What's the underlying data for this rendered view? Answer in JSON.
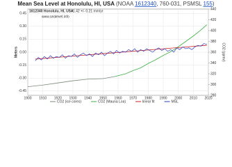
{
  "chart_data": {
    "type": "line",
    "title": "Mean Sea Level at Honolulu, HI, USA",
    "source_parts": [
      "(NOAA ",
      "1612340",
      ", 760-031, PSMSL ",
      "155",
      ")"
    ],
    "station": "1612340 Honolulu, HI, USA",
    "trend": "+1.42 +/- 0.21 mm/yr",
    "watermark": "www.sealevel.info",
    "ylabel": "Meters",
    "y2label": "CO2 (ppmv)",
    "xlim": [
      1900,
      2020
    ],
    "xticks": [
      1900,
      1910,
      1920,
      1930,
      1940,
      1950,
      1960,
      1970,
      1980,
      1990,
      2000,
      2010,
      2020
    ],
    "ylim": [
      -0.5,
      0.5
    ],
    "yticks": [
      {
        "value": -0.45,
        "label": "-0.45"
      },
      {
        "value": -0.3,
        "label": "-0.30"
      },
      {
        "value": -0.15,
        "label": "-0.15"
      },
      {
        "value": 0,
        "label": "0.00"
      },
      {
        "value": 0.15,
        "label": "0.15"
      },
      {
        "value": 0.3,
        "label": "0.30"
      },
      {
        "value": 0.45,
        "label": "0.45"
      }
    ],
    "y2lim": [
      280,
      440
    ],
    "y2ticks": [
      280,
      300,
      320,
      340,
      360,
      380,
      400,
      420,
      440
    ],
    "grid": true,
    "series": [
      {
        "name": "CO2 (ice cores)",
        "color": "#7a8a7a",
        "axis": "y2",
        "x": [
          1900,
          1910,
          1920,
          1930,
          1940,
          1950,
          1958
        ],
        "values": [
          296,
          299,
          303,
          307,
          310,
          311,
          315
        ]
      },
      {
        "name": "CO2 (Mauna Loa)",
        "color": "#3cb043",
        "axis": "y2",
        "x": [
          1958,
          1965,
          1970,
          1975,
          1980,
          1985,
          1990,
          1995,
          2000,
          2005,
          2010,
          2015,
          2019
        ],
        "values": [
          315,
          320,
          326,
          331,
          339,
          346,
          354,
          361,
          370,
          380,
          390,
          401,
          411
        ]
      },
      {
        "name": "linear fit",
        "color": "#d02020",
        "x": [
          1905,
          2019
        ],
        "values": [
          -0.08,
          0.08
        ]
      },
      {
        "name": "MSL",
        "color": "#2a3fc0",
        "x": [
          1905,
          1907,
          1909,
          1911,
          1913,
          1915,
          1917,
          1919,
          1921,
          1923,
          1925,
          1927,
          1929,
          1931,
          1933,
          1935,
          1937,
          1939,
          1941,
          1943,
          1945,
          1947,
          1949,
          1951,
          1953,
          1955,
          1957,
          1959,
          1961,
          1963,
          1965,
          1967,
          1969,
          1971,
          1973,
          1975,
          1977,
          1979,
          1981,
          1983,
          1985,
          1987,
          1989,
          1991,
          1993,
          1995,
          1997,
          1999,
          2001,
          2003,
          2005,
          2007,
          2009,
          2011,
          2013,
          2015,
          2017,
          2019
        ],
        "values": [
          -0.1,
          -0.06,
          -0.09,
          -0.05,
          -0.08,
          -0.04,
          -0.07,
          -0.05,
          -0.06,
          -0.03,
          -0.07,
          -0.04,
          -0.05,
          -0.02,
          -0.06,
          -0.03,
          -0.01,
          -0.04,
          -0.02,
          -0.05,
          -0.01,
          -0.03,
          0,
          -0.04,
          -0.01,
          0.01,
          -0.02,
          0.02,
          -0.01,
          0.01,
          0,
          0.03,
          0.01,
          0.04,
          0,
          0.03,
          0.01,
          0.04,
          0.02,
          0,
          0.03,
          0.05,
          0.02,
          0.04,
          0.01,
          0.03,
          0,
          0.05,
          0.03,
          0.06,
          0.04,
          0.05,
          0.03,
          0.06,
          0.08,
          0.07,
          0.1,
          0.09
        ]
      }
    ],
    "legend_position": "bottom"
  }
}
